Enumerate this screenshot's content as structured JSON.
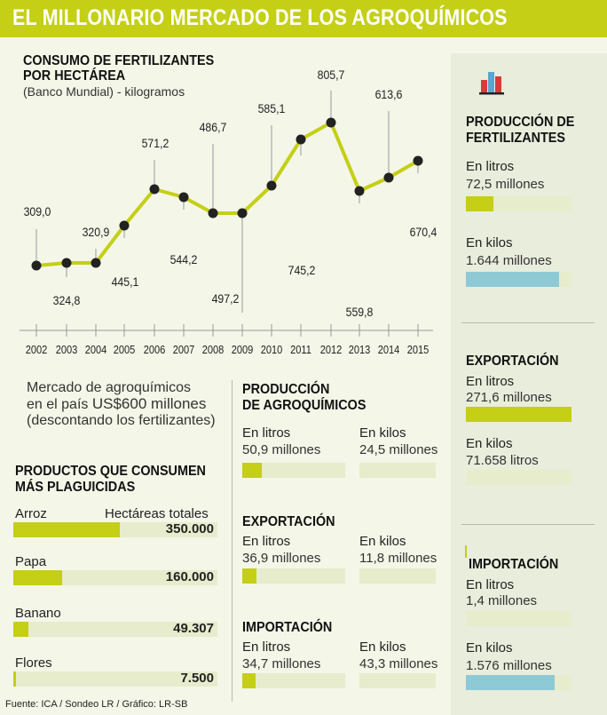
{
  "title": "EL MILLONARIO MERCADO DE LOS AGROQUÍMICOS",
  "chart_data": {
    "type": "line",
    "title_line1": "CONSUMO DE FERTILIZANTES",
    "title_line2": "POR HECTÁREA",
    "subtitle": "(Banco Mundial) - kilogramos",
    "x": [
      "2002",
      "2003",
      "2004",
      "2005",
      "2006",
      "2007",
      "2008",
      "2009",
      "2010",
      "2011",
      "2012",
      "2013",
      "2014",
      "2015"
    ],
    "values": [
      309.0,
      324.8,
      320.9,
      445.1,
      571.2,
      544.2,
      486.7,
      497.2,
      585.1,
      745.2,
      805.7,
      559.8,
      613.6,
      670.4
    ],
    "labels": [
      "309,0",
      "324,8",
      "320,9",
      "445,1",
      "571,2",
      "544,2",
      "486,7",
      "497,2",
      "585,1",
      "745,2",
      "805,7",
      "559,8",
      "613,6",
      "670,4"
    ],
    "color": "#c4cf16"
  },
  "market": {
    "line1": "Mercado de agroquímicos",
    "line2_prefix": "en el país",
    "line2_value": "US$600 millones",
    "line3": "(descontando los fertilizantes)"
  },
  "pesticides": {
    "title_line1": "PRODUCTOS QUE CONSUMEN",
    "title_line2": "MÁS PLAGUICIDAS",
    "column_header": "Hectáreas totales",
    "max": 350000,
    "items": [
      {
        "name": "Arroz",
        "value": 350000,
        "value_label": "350.000"
      },
      {
        "name": "Papa",
        "value": 160000,
        "value_label": "160.000"
      },
      {
        "name": "Banano",
        "value": 49307,
        "value_label": "49.307"
      },
      {
        "name": "Flores",
        "value": 7500,
        "value_label": "7.500"
      }
    ]
  },
  "agro": {
    "title_line1": "PRODUCCIÓN",
    "title_line2": "DE AGROQUÍMICOS",
    "litros_label": "En litros",
    "kilos_label": "En kilos",
    "prod_litros": "50,9 millones",
    "prod_kilos": "24,5 millones",
    "export_title": "EXPORTACIÓN",
    "export_litros": "36,9 millones",
    "export_kilos": "11,8 millones",
    "import_title": "IMPORTACIÓN",
    "import_litros": "34,7 millones",
    "import_kilos": "43,3 millones",
    "fills": {
      "prod_litros": 0.19,
      "prod_kilos": 0.0,
      "export_litros": 0.14,
      "export_kilos": 0.0,
      "import_litros": 0.13,
      "import_kilos": 0.0
    }
  },
  "fert": {
    "prod_title_line1": "PRODUCCIÓN DE",
    "prod_title_line2": "FERTILIZANTES",
    "litros_label": "En litros",
    "kilos_label": "En kilos",
    "prod_litros": "72,5 millones",
    "prod_kilos": "1.644 millones",
    "export_title": "EXPORTACIÓN",
    "export_litros": "271,6 millones",
    "export_kilos": "71.658 litros",
    "import_title": "IMPORTACIÓN",
    "import_litros": "1,4 millones",
    "import_kilos": "1.576 millones",
    "fills": {
      "prod_litros": 0.26,
      "prod_kilos": 0.88,
      "export_litros": 1.0,
      "export_kilos": 0.0,
      "import_litros": 0.0,
      "import_kilos": 0.84
    }
  },
  "source": "Fuente: ICA / Sondeo LR / Gráfico: LR-SB",
  "colors": {
    "accent": "#c4cf16",
    "blue": "#8ecad6",
    "track": "#e7eccc"
  },
  "icons": {
    "fert": "bar-chart-icon"
  }
}
